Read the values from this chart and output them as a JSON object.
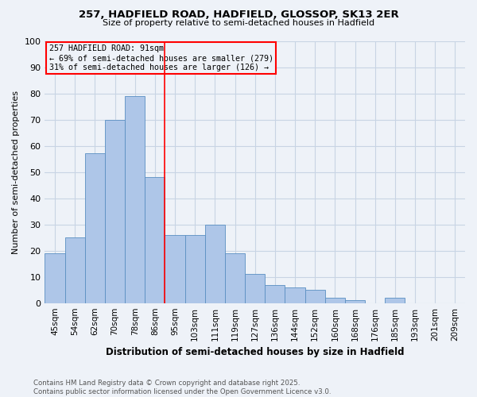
{
  "title1": "257, HADFIELD ROAD, HADFIELD, GLOSSOP, SK13 2ER",
  "title2": "Size of property relative to semi-detached houses in Hadfield",
  "xlabel": "Distribution of semi-detached houses by size in Hadfield",
  "ylabel": "Number of semi-detached properties",
  "categories": [
    "45sqm",
    "54sqm",
    "62sqm",
    "70sqm",
    "78sqm",
    "86sqm",
    "95sqm",
    "103sqm",
    "111sqm",
    "119sqm",
    "127sqm",
    "136sqm",
    "144sqm",
    "152sqm",
    "160sqm",
    "168sqm",
    "176sqm",
    "185sqm",
    "193sqm",
    "201sqm",
    "209sqm"
  ],
  "values": [
    19,
    25,
    57,
    70,
    79,
    48,
    26,
    26,
    30,
    19,
    11,
    7,
    6,
    5,
    2,
    1,
    0,
    2,
    0,
    0,
    0
  ],
  "bar_color": "#aec6e8",
  "bar_edge_color": "#5a8fc2",
  "grid_color": "#c8d4e4",
  "background_color": "#eef2f8",
  "property_label": "257 HADFIELD ROAD: 91sqm",
  "pct_smaller": "← 69% of semi-detached houses are smaller (279)",
  "pct_larger": "31% of semi-detached houses are larger (126) →",
  "vline_x": 5.5,
  "ylim": [
    0,
    100
  ],
  "yticks": [
    0,
    10,
    20,
    30,
    40,
    50,
    60,
    70,
    80,
    90,
    100
  ],
  "footer": "Contains HM Land Registry data © Crown copyright and database right 2025.\nContains public sector information licensed under the Open Government Licence v3.0."
}
